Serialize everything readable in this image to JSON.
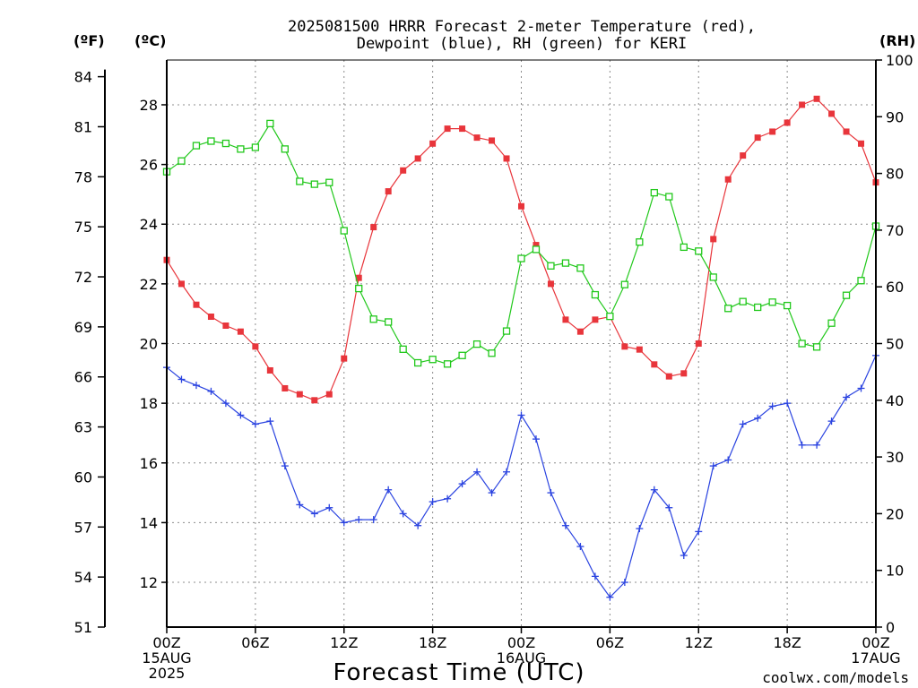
{
  "title_line1": "2025081500 HRRR Forecast 2-meter Temperature (red),",
  "title_line2": "Dewpoint (blue), RH (green) for KERI",
  "unit_f": "(ºF)",
  "unit_c": "(ºC)",
  "unit_rh": "(RH)",
  "xlabel": "Forecast Time (UTC)",
  "credit": "coolwx.com/models",
  "colors": {
    "temperature": "#e8353b",
    "dewpoint": "#2a43e0",
    "rh": "#21c81b",
    "credit": "#e8353b"
  },
  "x_ticks": [
    {
      "h": 0,
      "l1": "00Z",
      "l2": "15AUG",
      "l3": "2025"
    },
    {
      "h": 6,
      "l1": "06Z",
      "l2": "",
      "l3": ""
    },
    {
      "h": 12,
      "l1": "12Z",
      "l2": "",
      "l3": ""
    },
    {
      "h": 18,
      "l1": "18Z",
      "l2": "",
      "l3": ""
    },
    {
      "h": 24,
      "l1": "00Z",
      "l2": "16AUG",
      "l3": ""
    },
    {
      "h": 30,
      "l1": "06Z",
      "l2": "",
      "l3": ""
    },
    {
      "h": 36,
      "l1": "12Z",
      "l2": "",
      "l3": ""
    },
    {
      "h": 42,
      "l1": "18Z",
      "l2": "",
      "l3": ""
    },
    {
      "h": 48,
      "l1": "00Z",
      "l2": "17AUG",
      "l3": ""
    }
  ],
  "chart_data": {
    "type": "line",
    "x_unit": "forecast hour",
    "xlim": [
      0,
      48
    ],
    "ylim_c": [
      10.5,
      29.5
    ],
    "ylim_f": [
      51,
      85
    ],
    "ylim_rh": [
      0,
      100
    ],
    "c_ticks": [
      "12",
      "14",
      "16",
      "18",
      "20",
      "22",
      "24",
      "26",
      "28"
    ],
    "f_ticks": [
      "51",
      "54",
      "57",
      "60",
      "63",
      "66",
      "69",
      "72",
      "75",
      "78",
      "81",
      "84"
    ],
    "rh_ticks": [
      "0",
      "10",
      "20",
      "30",
      "40",
      "50",
      "60",
      "70",
      "80",
      "90",
      "100"
    ],
    "grid": true,
    "series": [
      {
        "name": "Temperature",
        "axis": "c",
        "marker": "filled-square",
        "x": [
          0,
          1,
          2,
          3,
          4,
          5,
          6,
          7,
          8,
          9,
          10,
          11,
          12,
          13,
          14,
          15,
          16,
          17,
          18,
          19,
          20,
          21,
          22,
          23,
          24,
          25,
          26,
          27,
          28,
          29,
          30,
          31,
          32,
          33,
          34,
          35,
          36,
          37,
          38,
          39,
          40,
          41,
          42,
          43,
          44,
          45,
          46,
          47,
          48
        ],
        "values": [
          22.8,
          22.0,
          21.3,
          20.9,
          20.6,
          20.4,
          19.9,
          19.1,
          18.5,
          18.3,
          18.1,
          18.3,
          19.5,
          22.2,
          23.9,
          25.1,
          25.8,
          26.2,
          26.7,
          27.2,
          27.2,
          26.9,
          26.8,
          26.2,
          24.6,
          23.3,
          22.0,
          20.8,
          20.4,
          20.8,
          20.9,
          19.9,
          19.8,
          19.3,
          18.9,
          19.0,
          20.0,
          23.5,
          25.5,
          26.3,
          26.9,
          27.1,
          27.4,
          28.0,
          28.2,
          27.7,
          27.1,
          26.7,
          25.4
        ],
        "labels_c": [],
        "note": "RH axis 0-100 %"
      },
      {
        "name": "Dewpoint",
        "axis": "c",
        "marker": "plus",
        "x": [
          0,
          1,
          2,
          3,
          4,
          5,
          6,
          7,
          8,
          9,
          10,
          11,
          12,
          13,
          14,
          15,
          16,
          17,
          18,
          19,
          20,
          21,
          22,
          23,
          24,
          25,
          26,
          27,
          28,
          29,
          30,
          31,
          32,
          33,
          34,
          35,
          36,
          37,
          38,
          39,
          40,
          41,
          42,
          43,
          44,
          45,
          46,
          47,
          48
        ],
        "values": [
          19.2,
          18.8,
          18.6,
          18.4,
          18.0,
          17.6,
          17.3,
          17.4,
          15.9,
          14.6,
          14.3,
          14.5,
          14.0,
          14.1,
          14.1,
          15.1,
          14.3,
          13.9,
          14.7,
          14.8,
          15.3,
          15.7,
          15.0,
          15.7,
          17.6,
          16.8,
          15.0,
          13.9,
          13.2,
          12.2,
          11.5,
          12.0,
          13.8,
          15.1,
          14.5,
          12.9,
          13.7,
          15.9,
          16.1,
          17.3,
          17.5,
          17.9,
          18.0,
          16.6,
          16.6,
          17.4,
          18.2,
          18.5,
          19.6
        ]
      },
      {
        "name": "RH",
        "axis": "rh",
        "marker": "open-square",
        "x": [
          0,
          1,
          2,
          3,
          4,
          5,
          6,
          7,
          8,
          9,
          10,
          11,
          12,
          13,
          14,
          15,
          16,
          17,
          18,
          19,
          20,
          21,
          22,
          23,
          24,
          25,
          26,
          27,
          28,
          29,
          30,
          31,
          32,
          33,
          34,
          35,
          36,
          37,
          38,
          39,
          40,
          41,
          42,
          43,
          44,
          45,
          46,
          47,
          48
        ],
        "values": [
          80.3,
          82.2,
          84.9,
          85.7,
          85.3,
          84.3,
          84.6,
          88.8,
          84.3,
          78.6,
          78.1,
          78.4,
          69.9,
          59.7,
          54.3,
          53.8,
          49.0,
          46.6,
          47.2,
          46.4,
          47.9,
          49.9,
          48.3,
          52.2,
          65.0,
          66.6,
          63.7,
          64.2,
          63.3,
          58.6,
          54.8,
          60.4,
          67.9,
          76.6,
          75.9,
          67.0,
          66.3,
          61.7,
          56.2,
          57.4,
          56.4,
          57.3,
          56.7,
          50.0,
          49.4,
          53.6,
          58.5,
          61.1,
          70.7
        ]
      }
    ]
  }
}
